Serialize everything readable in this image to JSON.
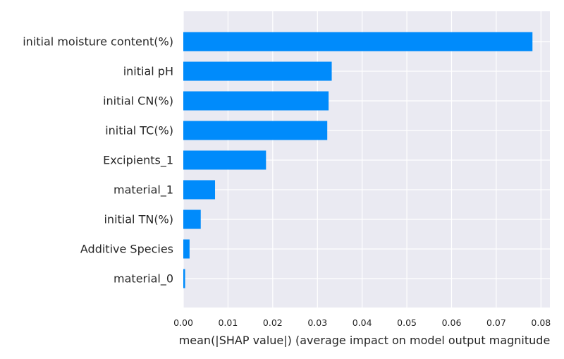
{
  "chart_data": {
    "type": "bar",
    "orientation": "horizontal",
    "categories": [
      "initial moisture content(%)",
      "initial pH",
      "initial CN(%)",
      "initial TC(%)",
      "Excipients_1",
      "material_1",
      "initial TN(%)",
      "Additive Species",
      "material_0"
    ],
    "values": [
      0.0781,
      0.0332,
      0.0325,
      0.0322,
      0.0185,
      0.0071,
      0.0039,
      0.0014,
      0.0004
    ],
    "xlabel": "mean(|SHAP value|) (average impact on model output magnitude",
    "ylabel": "",
    "xlim": [
      0,
      0.082
    ],
    "xticks": [
      "0.00",
      "0.01",
      "0.02",
      "0.03",
      "0.04",
      "0.05",
      "0.06",
      "0.07",
      "0.08"
    ],
    "grid": true,
    "colors": {
      "bar": "#008bfb",
      "plot_background": "#eaeaf2",
      "grid": "#ffffff",
      "text": "#262626"
    }
  }
}
